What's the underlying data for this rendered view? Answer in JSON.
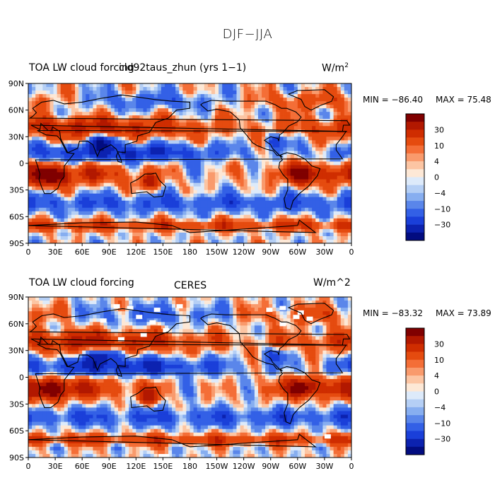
{
  "figure": {
    "title": "DJF−JJA"
  },
  "colorbar_levels": [
    "30",
    "10",
    "4",
    "0",
    "−4",
    "−10",
    "−30"
  ],
  "colors": [
    "#800000",
    "#b21800",
    "#cf2d00",
    "#e54b0f",
    "#f46e37",
    "#f99a6c",
    "#fcc5a3",
    "#fde8d6",
    "#ddeafa",
    "#b5cff5",
    "#87aef0",
    "#5a86ea",
    "#3360e6",
    "#1a3fd9",
    "#0c22b0",
    "#020c80"
  ],
  "chart_data": [
    {
      "type": "heatmap",
      "title_left": "TOA LW cloud forcing",
      "title_center": "cld92taus_zhun (yrs 1−1)",
      "units": "W/m",
      "units_sup": "2",
      "min_label": "MIN = −86.40",
      "max_label": "MAX =  75.48",
      "min": -86.4,
      "max": 75.48,
      "lat_ticks": [
        "90N",
        "60N",
        "30N",
        "0",
        "30S",
        "60S",
        "90S"
      ],
      "lon_ticks": [
        "0",
        "30E",
        "60E",
        "90E",
        "120E",
        "150E",
        "180",
        "150W",
        "120W",
        "90W",
        "60W",
        "30W",
        "0"
      ]
    },
    {
      "type": "heatmap",
      "title_left": "TOA LW cloud forcing",
      "title_center": "CERES",
      "units": "W/m^2",
      "min_label": "MIN = −83.32",
      "max_label": "MAX =  73.89",
      "min": -83.32,
      "max": 73.89,
      "lat_ticks": [
        "90N",
        "60N",
        "30N",
        "0",
        "30S",
        "60S",
        "90S"
      ],
      "lon_ticks": [
        "0",
        "30E",
        "60E",
        "90E",
        "120E",
        "150E",
        "180",
        "150W",
        "120W",
        "90W",
        "60W",
        "30W",
        "0"
      ]
    }
  ]
}
